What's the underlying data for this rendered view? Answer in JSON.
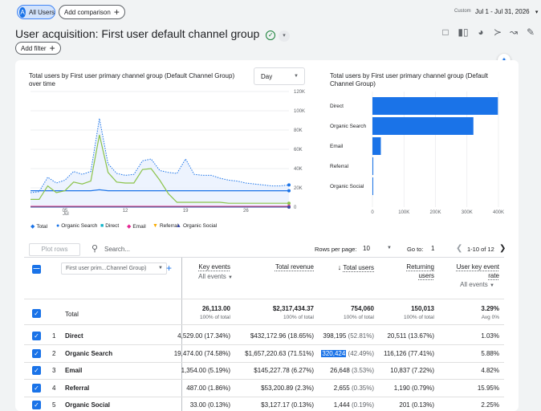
{
  "top": {
    "segment_chip": "All Users",
    "segment_avatar": "A",
    "add_comparison": "Add comparison",
    "custom_label": "Custom",
    "date_range": "Jul 1 - Jul 31, 2026"
  },
  "header": {
    "title": "User acquisition: First user default channel group",
    "add_filter": "Add filter"
  },
  "line_chart": {
    "title": "Total users by First user primary channel group (Default Channel Group) over time",
    "granularity": "Day",
    "y_ticks": [
      "120K",
      "100K",
      "80K",
      "60K",
      "40K",
      "20K",
      "0"
    ],
    "x_ticks": [
      "05",
      "12",
      "19",
      "26"
    ],
    "x_month": "Jul",
    "legend": [
      {
        "label": "Total",
        "icon": "diamond",
        "color": "#1a73e8"
      },
      {
        "label": "Organic Search",
        "icon": "circle",
        "color": "#1a73e8"
      },
      {
        "label": "Direct",
        "icon": "square",
        "color": "#12b5cb"
      },
      {
        "label": "Email",
        "icon": "diamond",
        "color": "#e52592"
      },
      {
        "label": "Referral",
        "icon": "triangle-down",
        "color": "#f9ab00"
      },
      {
        "label": "Organic Social",
        "icon": "triangle-up",
        "color": "#3949ab"
      }
    ]
  },
  "bar_chart": {
    "title": "Total users by First user primary channel group (Default Channel Group)",
    "x_ticks": [
      "0",
      "100K",
      "200K",
      "300K",
      "400K"
    ]
  },
  "chart_data": [
    {
      "type": "line",
      "title": "Total users by First user primary channel group (Default Channel Group) over time",
      "x": [
        1,
        2,
        3,
        4,
        5,
        6,
        7,
        8,
        9,
        10,
        11,
        12,
        13,
        14,
        15,
        16,
        17,
        18,
        19,
        20,
        21,
        22,
        23,
        24,
        25,
        26,
        27,
        28,
        29,
        30,
        31
      ],
      "ylim": [
        0,
        120000
      ],
      "series": [
        {
          "name": "Total",
          "values": [
            15000,
            16000,
            31000,
            25000,
            28000,
            37000,
            34000,
            37000,
            92000,
            45000,
            35000,
            33000,
            34000,
            48000,
            50000,
            38000,
            36000,
            35000,
            50000,
            34000,
            33000,
            33000,
            30000,
            28000,
            27000,
            25000,
            24000,
            23000,
            22000,
            22000,
            23000
          ]
        },
        {
          "name": "Organic Search",
          "values": [
            17000,
            17000,
            17000,
            17000,
            17000,
            17000,
            17000,
            17000,
            18000,
            17000,
            17000,
            17000,
            17000,
            17000,
            17000,
            17000,
            17000,
            17000,
            17000,
            17000,
            17000,
            17000,
            17000,
            17000,
            17000,
            17000,
            17000,
            17000,
            17000,
            17000,
            17000
          ]
        },
        {
          "name": "Direct",
          "values": [
            8000,
            8000,
            22000,
            15000,
            17000,
            26000,
            24000,
            27000,
            75000,
            36000,
            26000,
            25000,
            25000,
            39000,
            40000,
            28000,
            14000,
            5000,
            5000,
            5000,
            5000,
            5000,
            5000,
            4000,
            4000,
            4000,
            4000,
            4000,
            4000,
            4000,
            4000
          ]
        },
        {
          "name": "Email",
          "values": [
            800,
            800,
            800,
            800,
            800,
            800,
            800,
            800,
            800,
            800,
            800,
            800,
            800,
            800,
            800,
            800,
            800,
            800,
            800,
            800,
            800,
            800,
            800,
            800,
            800,
            800,
            800,
            800,
            800,
            800,
            800
          ]
        },
        {
          "name": "Referral",
          "values": [
            100,
            100,
            100,
            100,
            100,
            100,
            100,
            100,
            100,
            100,
            100,
            100,
            100,
            100,
            100,
            100,
            100,
            100,
            100,
            100,
            100,
            100,
            100,
            100,
            100,
            100,
            100,
            100,
            100,
            100,
            100
          ]
        },
        {
          "name": "Organic Social",
          "values": [
            50,
            50,
            50,
            50,
            50,
            50,
            50,
            50,
            50,
            50,
            50,
            50,
            50,
            50,
            50,
            50,
            50,
            50,
            50,
            50,
            50,
            50,
            50,
            50,
            50,
            50,
            50,
            50,
            50,
            50,
            50
          ]
        }
      ]
    },
    {
      "type": "bar",
      "orientation": "horizontal",
      "title": "Total users by First user primary channel group (Default Channel Group)",
      "categories": [
        "Direct",
        "Organic Search",
        "Email",
        "Referral",
        "Organic Social"
      ],
      "values": [
        398195,
        320424,
        26648,
        2655,
        1444
      ],
      "xlim": [
        0,
        400000
      ]
    }
  ],
  "controls": {
    "plot_rows": "Plot rows",
    "search_placeholder": "Search...",
    "rows_per_page_label": "Rows per page:",
    "rows_per_page": "10",
    "goto_label": "Go to:",
    "goto_value": "1",
    "page_info": "1-10 of 12"
  },
  "table": {
    "dim_header": "First user prim...Channel Group)",
    "columns": [
      {
        "label": "Key events",
        "sub": "All events"
      },
      {
        "label": "Total revenue",
        "sub": ""
      },
      {
        "label": "Total users",
        "sub": ""
      },
      {
        "label": "Returning users",
        "sub": ""
      },
      {
        "label": "User key event rate",
        "sub": "All events"
      }
    ],
    "total": {
      "label": "Total",
      "values": [
        "26,113.00",
        "$2,317,434.37",
        "754,060",
        "150,013",
        "3.29%"
      ],
      "subs": [
        "100% of total",
        "100% of total",
        "100% of total",
        "100% of total",
        "Avg 0%"
      ]
    },
    "rows": [
      {
        "num": "1",
        "name": "Direct",
        "key": "4,529.00 (17.34%)",
        "rev": "$432,172.96 (18.65%)",
        "users_value": "398,195",
        "users_pct": " (52.81%)",
        "ret": "20,511 (13.67%)",
        "rate": "1.03%"
      },
      {
        "num": "2",
        "name": "Organic Search",
        "key": "19,474.00 (74.58%)",
        "rev": "$1,657,220.63 (71.51%)",
        "users_value": "320,424",
        "users_pct": " (42.49%)",
        "ret": "116,126 (77.41%)",
        "rate": "5.88%"
      },
      {
        "num": "3",
        "name": "Email",
        "key": "1,354.00 (5.19%)",
        "rev": "$145,227.78 (6.27%)",
        "users_value": "26,648",
        "users_pct": " (3.53%)",
        "ret": "10,837 (7.22%)",
        "rate": "4.82%"
      },
      {
        "num": "4",
        "name": "Referral",
        "key": "487.00 (1.86%)",
        "rev": "$53,200.89 (2.3%)",
        "users_value": "2,655",
        "users_pct": " (0.35%)",
        "ret": "1,190 (0.79%)",
        "rate": "15.95%"
      },
      {
        "num": "5",
        "name": "Organic Social",
        "key": "33.00 (0.13%)",
        "rev": "$3,127.17 (0.13%)",
        "users_value": "1,444",
        "users_pct": " (0.19%)",
        "ret": "201 (0.13%)",
        "rate": "2.25%"
      }
    ]
  }
}
